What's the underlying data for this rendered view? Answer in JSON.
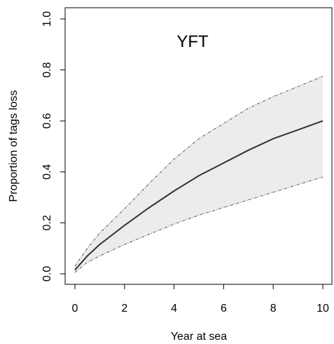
{
  "chart_data": {
    "type": "line",
    "title": "YFT",
    "xlabel": "Year at sea",
    "ylabel": "Proportion of tags loss",
    "xlim": [
      0,
      10
    ],
    "ylim": [
      0,
      1
    ],
    "x_ticks": [
      0,
      2,
      4,
      6,
      8,
      10
    ],
    "y_ticks": [
      0.0,
      0.2,
      0.4,
      0.6,
      0.8,
      1.0
    ],
    "x_tick_labels": [
      "0",
      "2",
      "4",
      "6",
      "8",
      "10"
    ],
    "y_tick_labels": [
      "0.0",
      "0.2",
      "0.4",
      "0.6",
      "0.8",
      "1.0"
    ],
    "grid": false,
    "x": [
      0,
      0.5,
      1,
      2,
      3,
      4,
      5,
      6,
      7,
      8,
      9,
      10
    ],
    "series": [
      {
        "role": "estimate",
        "values": [
          0.015,
          0.07,
          0.115,
          0.19,
          0.26,
          0.325,
          0.385,
          0.435,
          0.485,
          0.53,
          0.565,
          0.6
        ],
        "color": "#333333"
      },
      {
        "role": "upper",
        "values": [
          0.03,
          0.1,
          0.16,
          0.255,
          0.355,
          0.45,
          0.53,
          0.59,
          0.65,
          0.695,
          0.735,
          0.775
        ],
        "color": "#555555"
      },
      {
        "role": "lower",
        "values": [
          0.005,
          0.045,
          0.07,
          0.115,
          0.155,
          0.195,
          0.23,
          0.26,
          0.29,
          0.32,
          0.35,
          0.38
        ],
        "color": "#555555"
      }
    ],
    "band_color": "#ececec"
  }
}
